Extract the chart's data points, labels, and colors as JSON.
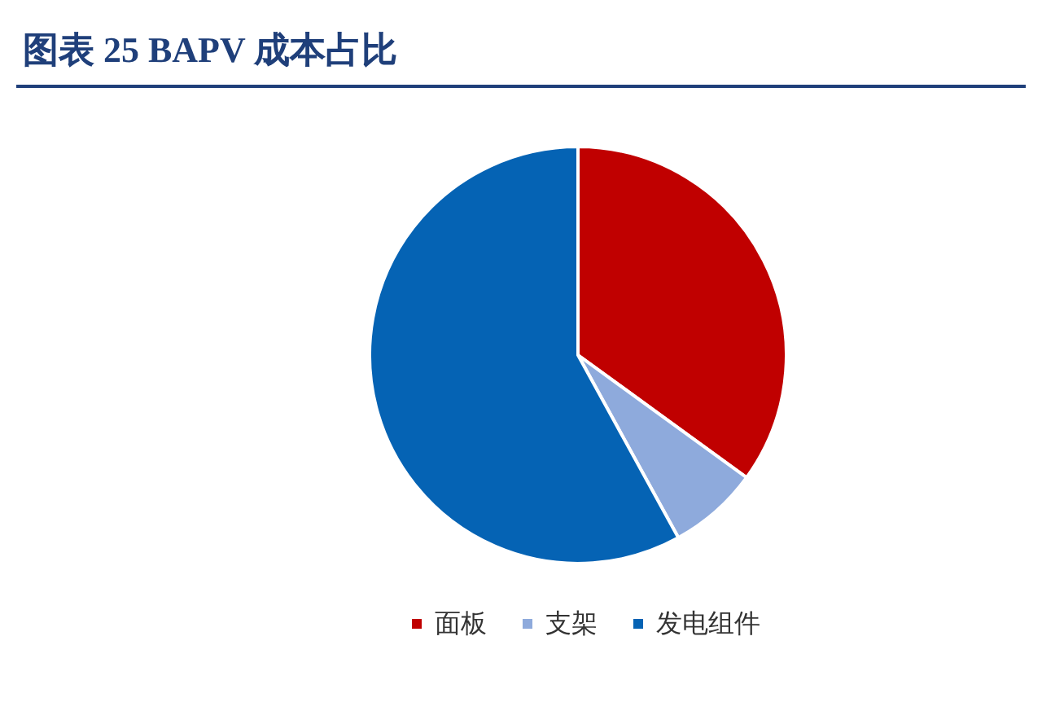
{
  "chart_data": {
    "type": "pie",
    "title": "图表 25 BAPV 成本占比",
    "categories": [
      "面板",
      "支架",
      "发电组件"
    ],
    "values": [
      35,
      7,
      58
    ],
    "colors": [
      "#c00000",
      "#8eaadc",
      "#0563b4"
    ],
    "legend": "bottom"
  }
}
